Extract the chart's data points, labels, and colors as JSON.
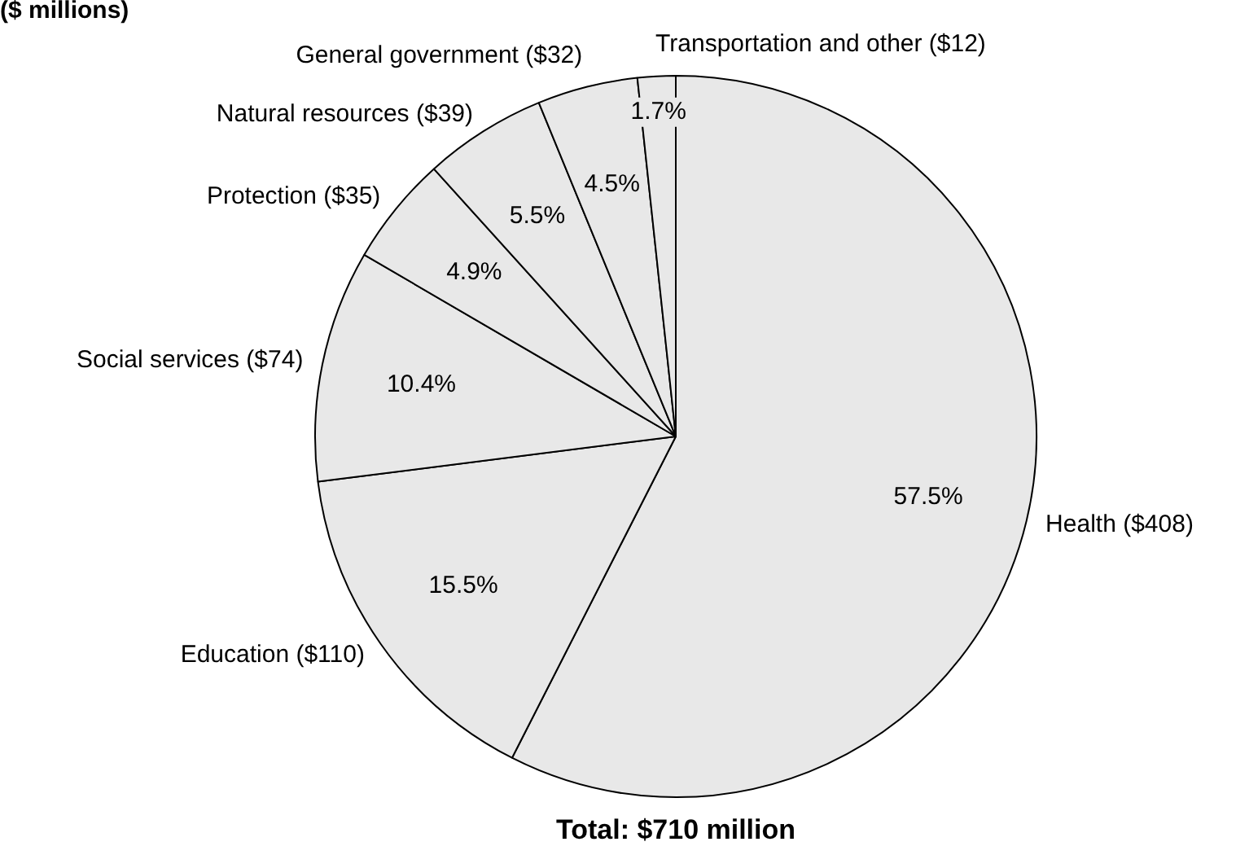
{
  "chart_data": {
    "type": "pie",
    "title": "($ millions)",
    "categories": [
      "Health ($408)",
      "Education ($110)",
      "Social services ($74)",
      "Protection ($35)",
      "Natural resources ($39)",
      "General government ($32)",
      "Transportation and other ($12)"
    ],
    "values": [
      57.5,
      15.5,
      10.4,
      4.9,
      5.5,
      4.5,
      1.7
    ],
    "colors": [
      "#e8e8e8",
      "#e8e8e8",
      "#e8e8e8",
      "#e8e8e8",
      "#e8e8e8",
      "#e8e8e8",
      "#e8e8e8"
    ],
    "value_labels": [
      "57.5%",
      "15.5%",
      "10.4%",
      "4.9%",
      "5.5%",
      "4.5%",
      "1.7%"
    ],
    "annotations": [
      "Total: $710 million"
    ],
    "legend": false
  }
}
